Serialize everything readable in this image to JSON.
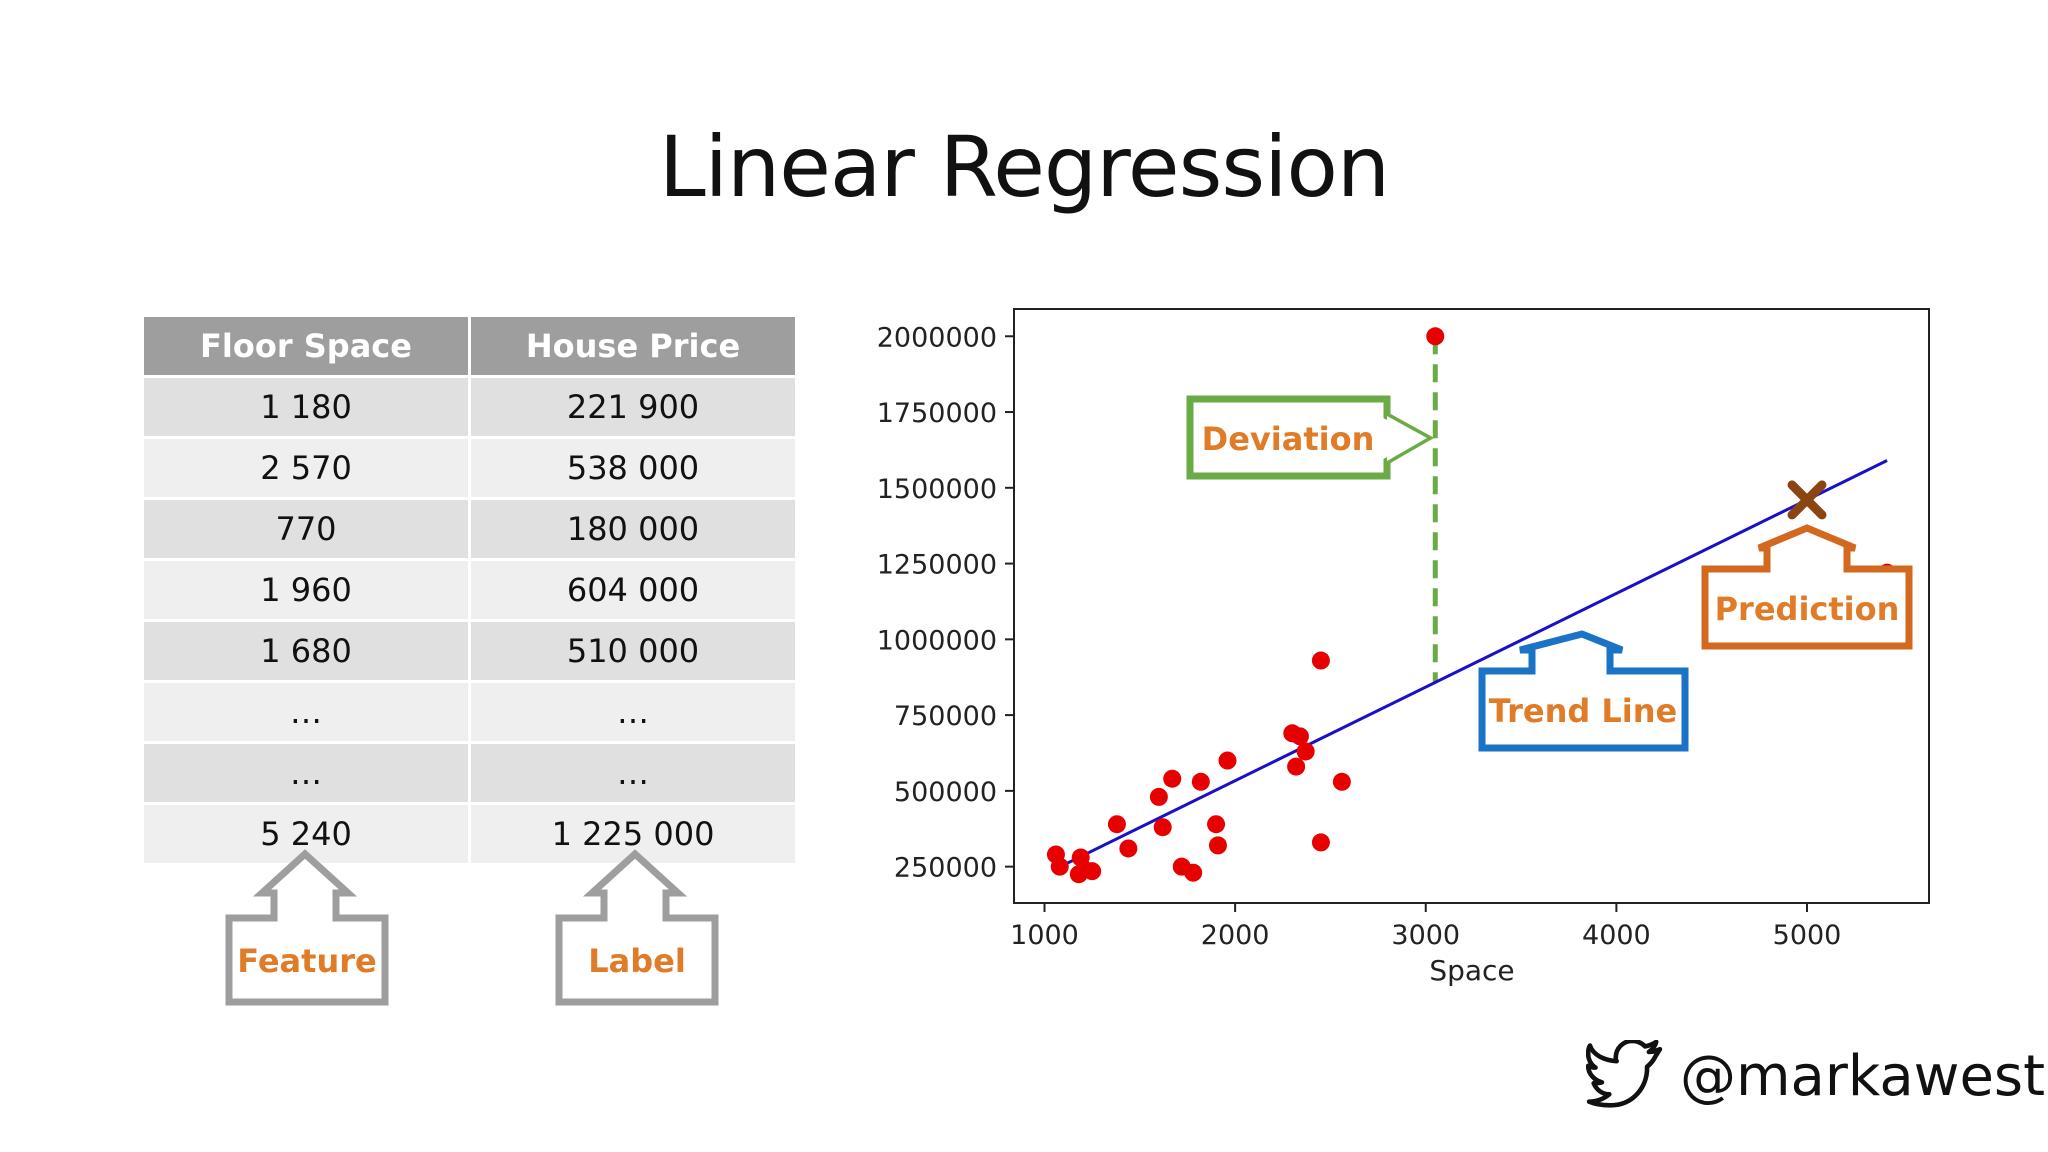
{
  "title": "Linear Regression",
  "table": {
    "headers": [
      "Floor Space",
      "House Price"
    ],
    "rows": [
      [
        "1 180",
        "221 900"
      ],
      [
        "2 570",
        "538 000"
      ],
      [
        "770",
        "180 000"
      ],
      [
        "1 960",
        "604 000"
      ],
      [
        "1 680",
        "510 000"
      ],
      [
        "…",
        "…"
      ],
      [
        "…",
        "…"
      ],
      [
        "5 240",
        "1 225 000"
      ]
    ]
  },
  "callouts": {
    "feature": "Feature",
    "label": "Label",
    "deviation": "Deviation",
    "trend_line": "Trend Line",
    "prediction": "Prediction"
  },
  "colors": {
    "callout_text": "#e07b28",
    "feature_border": "#9e9e9e",
    "deviation_border": "#6aab46",
    "trend_border": "#1a73c4",
    "prediction_border": "#d2691e",
    "points": "#e60000",
    "trend": "#1a10c8",
    "prediction_mark": "#8b4513"
  },
  "chart_data": {
    "type": "scatter",
    "xlabel": "Space",
    "ylabel": "",
    "xlim": [
      840,
      5640
    ],
    "ylim": [
      130000,
      2090000
    ],
    "xticks": [
      1000,
      2000,
      3000,
      4000,
      5000
    ],
    "yticks": [
      250000,
      500000,
      750000,
      1000000,
      1250000,
      1500000,
      1750000,
      2000000
    ],
    "xtick_labels": [
      "1000",
      "2000",
      "3000",
      "4000",
      "5000"
    ],
    "ytick_labels": [
      "250000",
      "500000",
      "750000",
      "1000000",
      "1250000",
      "1500000",
      "1750000",
      "2000000"
    ],
    "points": [
      [
        1060,
        290000
      ],
      [
        1080,
        250000
      ],
      [
        1180,
        225000
      ],
      [
        1190,
        280000
      ],
      [
        1210,
        240000
      ],
      [
        1250,
        235000
      ],
      [
        1380,
        390000
      ],
      [
        1440,
        310000
      ],
      [
        1600,
        480000
      ],
      [
        1620,
        380000
      ],
      [
        1670,
        540000
      ],
      [
        1720,
        250000
      ],
      [
        1780,
        230000
      ],
      [
        1820,
        530000
      ],
      [
        1900,
        390000
      ],
      [
        1910,
        320000
      ],
      [
        1960,
        600000
      ],
      [
        2300,
        690000
      ],
      [
        2320,
        580000
      ],
      [
        2340,
        680000
      ],
      [
        2370,
        630000
      ],
      [
        2450,
        930000
      ],
      [
        2450,
        330000
      ],
      [
        2560,
        530000
      ],
      [
        3050,
        2000000
      ],
      [
        5420,
        1220000
      ]
    ],
    "trend_line": [
      [
        1050,
        240000
      ],
      [
        5420,
        1590000
      ]
    ],
    "deviation": {
      "x": 3050,
      "from": 2000000,
      "to": 860000
    },
    "prediction": {
      "x": 5000,
      "y": 1460000
    },
    "grid": false
  },
  "footer": {
    "handle": "@markawest"
  }
}
